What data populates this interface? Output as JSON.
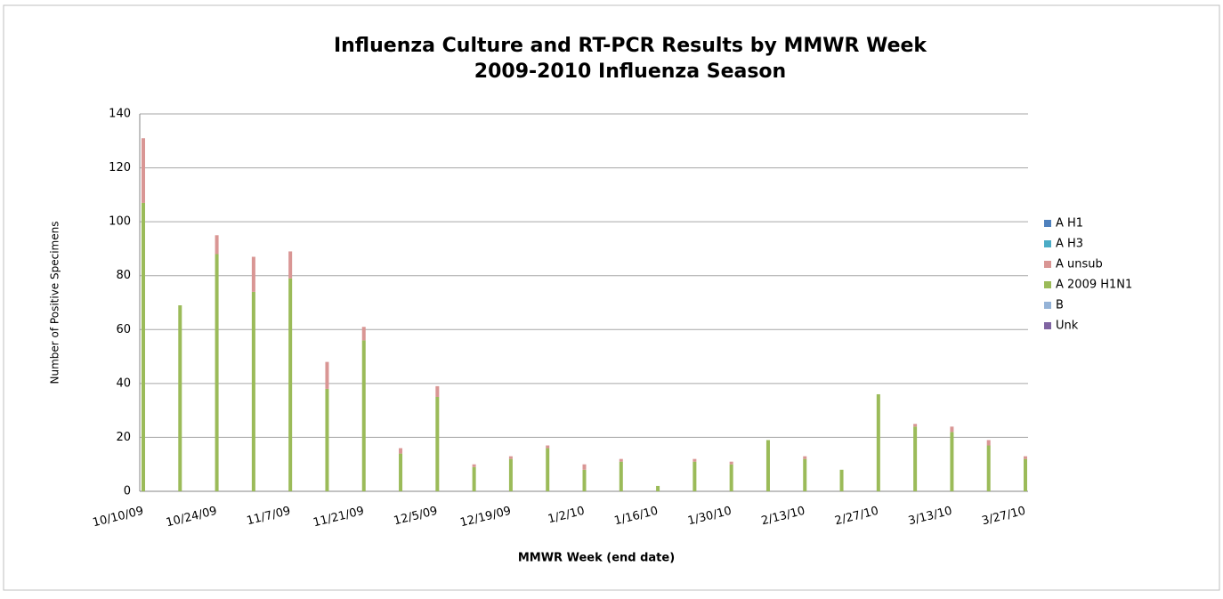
{
  "chart_data": {
    "type": "stacked_bar",
    "title": [
      "Influenza Culture and RT-PCR Results by MMWR Week",
      "2009-2010 Influenza Season"
    ],
    "y_label": "Number of Positive Specimens",
    "x_label": "MMWR Week (end date)",
    "categories": [
      "10/10/09",
      null,
      "10/24/09",
      null,
      "11/7/09",
      null,
      "11/21/09",
      null,
      "12/5/09",
      null,
      "12/19/09",
      null,
      "1/2/10",
      null,
      "1/16/10",
      null,
      "1/30/10",
      null,
      "2/13/10",
      null,
      "2/27/10",
      null,
      "3/13/10",
      null,
      "3/27/10"
    ],
    "series": [
      {
        "name": "A H1",
        "color": "#4f81bd",
        "values": [
          0,
          0,
          0,
          0,
          0,
          0,
          0,
          0,
          0,
          0,
          0,
          0,
          0,
          0,
          0,
          0,
          0,
          0,
          0,
          0,
          0,
          0,
          0,
          0,
          0
        ]
      },
      {
        "name": "A H3",
        "color": "#4bacc6",
        "values": [
          0,
          0,
          0,
          0,
          0,
          0,
          0,
          0,
          0,
          0,
          0,
          0,
          0,
          0,
          0,
          0,
          0,
          0,
          0,
          0,
          0,
          0,
          0,
          0,
          0
        ]
      },
      {
        "name": "A unsub",
        "color": "#d99694",
        "values": [
          24,
          0,
          7,
          13,
          10,
          10,
          5,
          2,
          4,
          1,
          1,
          1,
          2,
          1,
          0,
          1,
          1,
          0,
          1,
          0,
          0,
          1,
          2,
          2,
          1
        ]
      },
      {
        "name": "A 2009 H1N1",
        "color": "#9bbb59",
        "values": [
          107,
          69,
          88,
          74,
          79,
          38,
          56,
          14,
          35,
          9,
          12,
          16,
          8,
          11,
          2,
          11,
          10,
          19,
          12,
          8,
          36,
          24,
          22,
          17,
          12
        ]
      },
      {
        "name": "B",
        "color": "#95b3d7",
        "values": [
          0,
          0,
          0,
          0,
          0,
          0,
          0,
          0,
          0,
          0,
          0,
          0,
          0,
          0,
          0,
          0,
          0,
          0,
          0,
          0,
          0,
          0,
          0,
          0,
          0
        ]
      },
      {
        "name": "Unk",
        "color": "#8064a2",
        "values": [
          0,
          0,
          0,
          0,
          0,
          0,
          0,
          0,
          0,
          0,
          0,
          0,
          0,
          0,
          0,
          0,
          0,
          0,
          0,
          0,
          0,
          0,
          0,
          0,
          0
        ]
      }
    ],
    "ylim": [
      0,
      140
    ],
    "yticks": [
      0,
      20,
      40,
      60,
      80,
      100,
      120,
      140
    ],
    "grid": true,
    "legend": "right"
  }
}
